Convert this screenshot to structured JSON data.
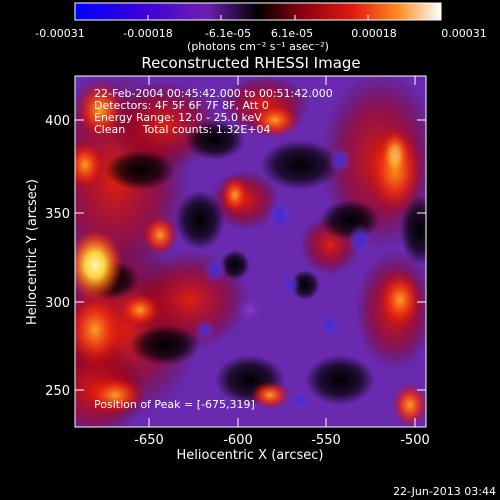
{
  "colorbar": {
    "ticks": [
      "-0.00031",
      "-0.00018",
      "-6.1e-05",
      "6.1e-05",
      "0.00018",
      "0.00031"
    ],
    "unit_label": "(photons cm⁻² s⁻¹ asec⁻²)"
  },
  "image": {
    "title": "Reconstructed RHESSI Image",
    "info_lines": [
      "22-Feb-2004 00:45:42.000 to 00:51:42.000",
      "Detectors: 4F 5F 6F 7F 8F, Att 0",
      "Energy Range: 12.0 - 25.0 keV",
      "Clean     Total counts: 1.32E+04"
    ],
    "peak_label": "Position of Peak = [-675,319]"
  },
  "axes": {
    "xlabel": "Heliocentric X (arcsec)",
    "ylabel": "Heliocentric Y (arcsec)",
    "xlim": [
      -686,
      -496
    ],
    "ylim": [
      229,
      429
    ],
    "xticks": [
      -650,
      -600,
      -550,
      -500
    ],
    "yticks": [
      250,
      300,
      350,
      400
    ]
  },
  "footer": {
    "timestamp": "22-Jun-2013 03:44"
  },
  "colors": {
    "negative": "#1e1ee6",
    "zero": "#000000",
    "positive_low": "#c81414",
    "positive_high": "#fff0a0"
  }
}
